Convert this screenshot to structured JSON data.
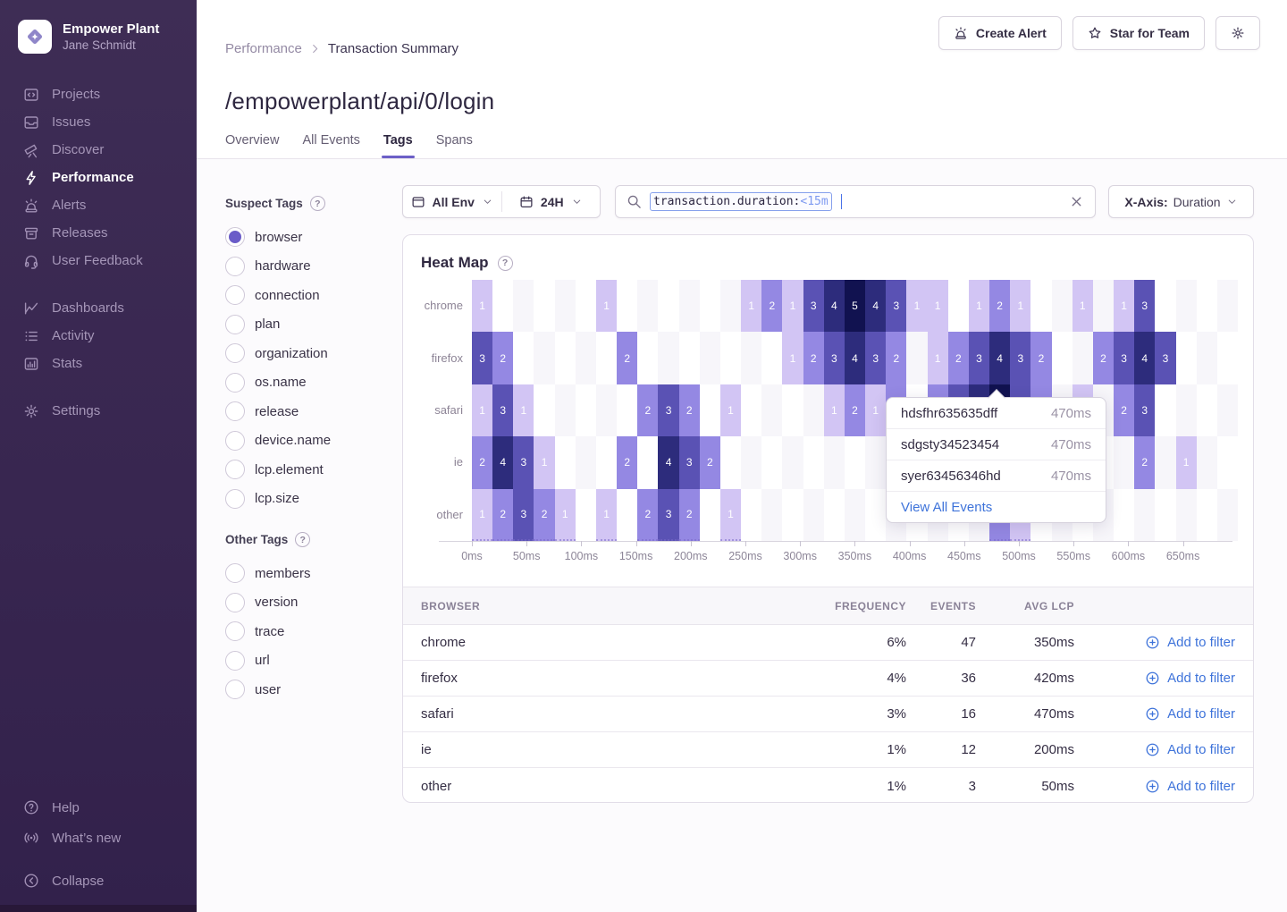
{
  "sidebar": {
    "org_name": "Empower Plant",
    "user_name": "Jane Schmidt",
    "active": "Performance",
    "nav_groups": [
      [
        {
          "label": "Projects",
          "icon": "projects"
        },
        {
          "label": "Issues",
          "icon": "issues"
        },
        {
          "label": "Discover",
          "icon": "discover"
        },
        {
          "label": "Performance",
          "icon": "performance"
        },
        {
          "label": "Alerts",
          "icon": "alerts"
        },
        {
          "label": "Releases",
          "icon": "releases"
        },
        {
          "label": "User Feedback",
          "icon": "user-feedback"
        }
      ],
      [
        {
          "label": "Dashboards",
          "icon": "dashboards"
        },
        {
          "label": "Activity",
          "icon": "activity"
        },
        {
          "label": "Stats",
          "icon": "stats"
        }
      ],
      [
        {
          "label": "Settings",
          "icon": "settings"
        }
      ]
    ],
    "footer_items": [
      {
        "label": "Help",
        "icon": "help"
      },
      {
        "label": "What’s new",
        "icon": "whats-new"
      },
      {
        "label": "Collapse",
        "icon": "collapse"
      }
    ]
  },
  "header": {
    "breadcrumb": [
      "Performance",
      "Transaction Summary"
    ],
    "title": "/empowerplant/api/0/login",
    "tabs": [
      "Overview",
      "All Events",
      "Tags",
      "Spans"
    ],
    "active_tab": "Tags",
    "actions": {
      "create_alert": "Create Alert",
      "star_team": "Star for Team"
    }
  },
  "filters": {
    "env_value": "All Env",
    "time_value": "24H",
    "search_token_key": "transaction.duration:",
    "search_token_value": "<15m",
    "xaxis_label": "X-Axis:",
    "xaxis_value": "Duration"
  },
  "tags_panel": {
    "suspect_title": "Suspect Tags",
    "suspect_items": [
      "browser",
      "hardware",
      "connection",
      "plan",
      "organization",
      "os.name",
      "release",
      "device.name",
      "lcp.element",
      "lcp.size"
    ],
    "selected": "browser",
    "other_title": "Other Tags",
    "other_items": [
      "members",
      "version",
      "trace",
      "url",
      "user"
    ]
  },
  "chart_data": {
    "type": "heatmap",
    "title": "Heat Map",
    "rows": [
      "chrome",
      "firefox",
      "safari",
      "ie",
      "other"
    ],
    "n_cols": 37,
    "x_ticks": [
      "0ms",
      "50ms",
      "100ms",
      "150ms",
      "200ms",
      "250ms",
      "300ms",
      "350ms",
      "400ms",
      "450ms",
      "500ms",
      "550ms",
      "600ms",
      "650ms"
    ],
    "xlabel_unit": "ms",
    "checker_color": "#f7f6fa",
    "heat_colors": {
      "1": "#d2c5f4",
      "2": "#9488e3",
      "3": "#5a52b4",
      "4": "#2d2c7c",
      "5": "#111250"
    },
    "cells": {
      "chrome": {
        "0": 1,
        "6": 1,
        "13": 1,
        "14": 2,
        "15": 1,
        "16": 3,
        "17": 4,
        "18": 5,
        "19": 4,
        "20": 3,
        "21": 1,
        "22": 1,
        "24": 1,
        "25": 2,
        "26": 1,
        "29": 1,
        "31": 1,
        "32": 3
      },
      "firefox": {
        "0": 3,
        "1": 2,
        "7": 2,
        "15": 1,
        "16": 2,
        "17": 3,
        "18": 4,
        "19": 3,
        "20": 2,
        "22": 1,
        "23": 2,
        "24": 3,
        "25": 4,
        "26": 3,
        "27": 2,
        "30": 2,
        "31": 3,
        "32": 4,
        "33": 3
      },
      "safari": {
        "0": 1,
        "1": 3,
        "2": 1,
        "8": 2,
        "9": 3,
        "10": 2,
        "12": 1,
        "17": 1,
        "18": 2,
        "19": 1,
        "20": 2,
        "22": 2,
        "23": 3,
        "24": 4,
        "25": 5,
        "26": 3,
        "27": 2,
        "29": 1,
        "31": 2,
        "32": 3
      },
      "ie": {
        "0": 2,
        "1": 4,
        "2": 3,
        "3": 1,
        "7": 2,
        "9": 4,
        "10": 3,
        "11": 2,
        "32": 2,
        "34": 1
      },
      "other": {
        "0": 1,
        "1": 2,
        "2": 3,
        "3": 2,
        "4": 1,
        "6": 1,
        "8": 2,
        "9": 3,
        "10": 2,
        "12": 1,
        "25": 2,
        "26": 1
      }
    }
  },
  "tooltip": {
    "events": [
      {
        "id": "hdsfhr635635dff",
        "value": "470ms"
      },
      {
        "id": "sdgsty34523454",
        "value": "470ms"
      },
      {
        "id": "syer63456346hd",
        "value": "470ms"
      }
    ],
    "footer": "View All Events"
  },
  "table": {
    "columns": [
      "BROWSER",
      "FREQUENCY",
      "EVENTS",
      "AVG LCP"
    ],
    "action_label": "Add to filter",
    "rows": [
      {
        "browser": "chrome",
        "frequency": "6%",
        "events": "47",
        "avg_lcp": "350ms"
      },
      {
        "browser": "firefox",
        "frequency": "4%",
        "events": "36",
        "avg_lcp": "420ms"
      },
      {
        "browser": "safari",
        "frequency": "3%",
        "events": "16",
        "avg_lcp": "470ms"
      },
      {
        "browser": "ie",
        "frequency": "1%",
        "events": "12",
        "avg_lcp": "200ms"
      },
      {
        "browser": "other",
        "frequency": "1%",
        "events": "3",
        "avg_lcp": "50ms"
      }
    ]
  },
  "colors": {
    "accent": "#6c5fc7",
    "link_blue": "#3e73da",
    "sidebar_bg": "#382650"
  }
}
